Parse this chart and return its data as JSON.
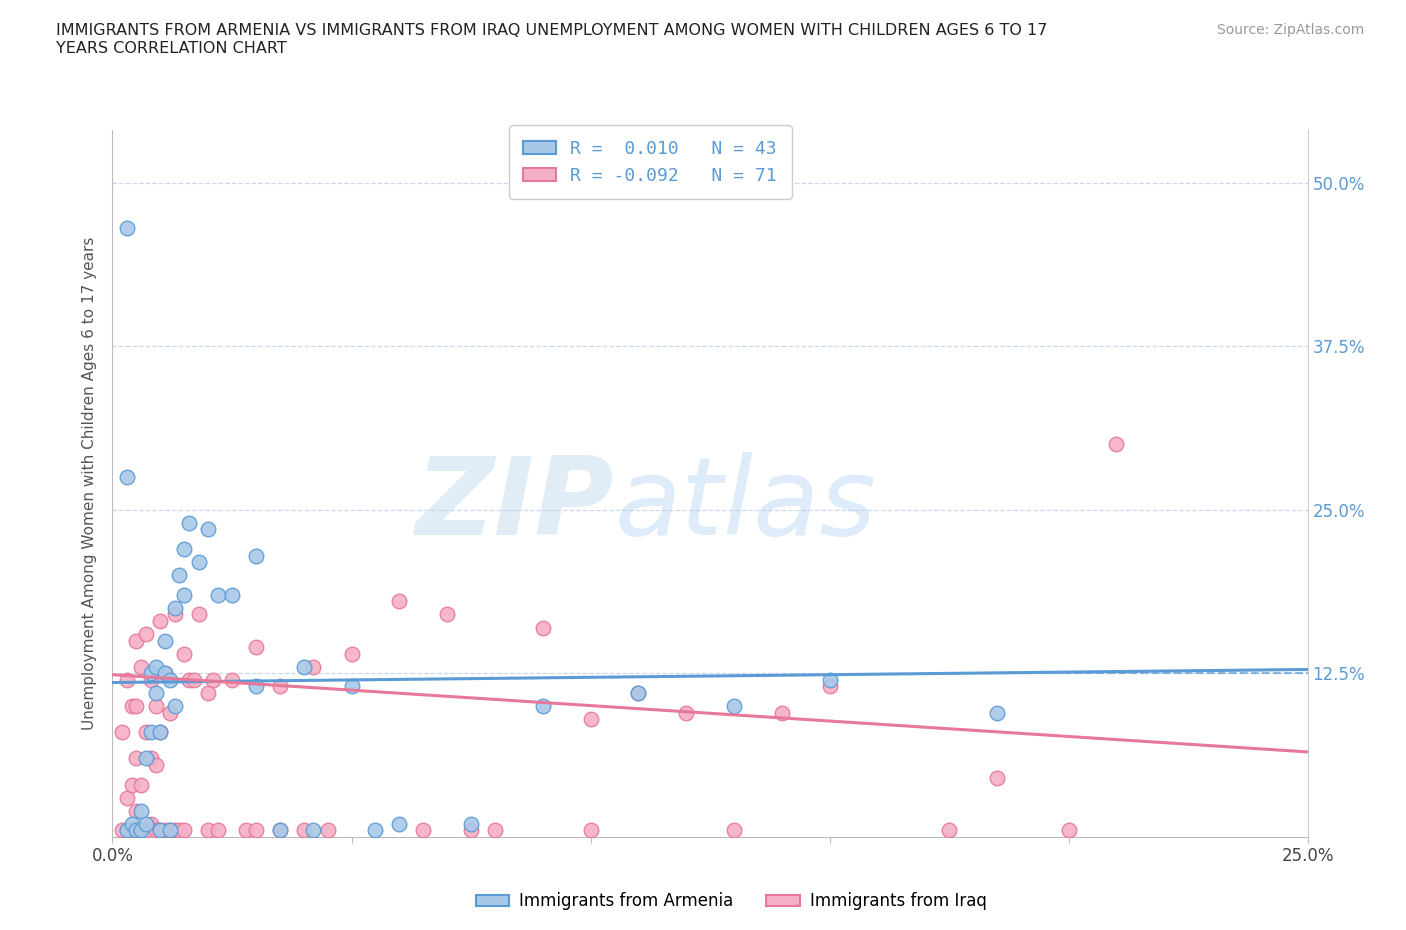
{
  "title": "IMMIGRANTS FROM ARMENIA VS IMMIGRANTS FROM IRAQ UNEMPLOYMENT AMONG WOMEN WITH CHILDREN AGES 6 TO 17\nYEARS CORRELATION CHART",
  "source_text": "Source: ZipAtlas.com",
  "ylabel": "Unemployment Among Women with Children Ages 6 to 17 years",
  "xlim": [
    0.0,
    0.25
  ],
  "ylim": [
    0.0,
    0.54
  ],
  "yticks": [
    0.0,
    0.125,
    0.25,
    0.375,
    0.5
  ],
  "ytick_labels_right": [
    "",
    "12.5%",
    "25.0%",
    "37.5%",
    "50.0%"
  ],
  "xticks": [
    0.0,
    0.05,
    0.1,
    0.15,
    0.2,
    0.25
  ],
  "xtick_labels": [
    "0.0%",
    "",
    "",
    "",
    "",
    "25.0%"
  ],
  "armenia_color": "#a8c8e8",
  "iraq_color": "#f4b0c4",
  "armenia_edge_color": "#5b9bd5",
  "iraq_edge_color": "#e8789a",
  "armenia_line_color": "#5b9bd5",
  "iraq_line_color": "#e8789a",
  "grid_color": "#c8d8ee",
  "legend_r_armenia": "R =  0.010",
  "legend_n_armenia": "N = 43",
  "legend_r_iraq": "R = -0.092",
  "legend_n_iraq": "N = 71",
  "armenia_scatter_x": [
    0.003,
    0.003,
    0.004,
    0.005,
    0.006,
    0.006,
    0.007,
    0.007,
    0.008,
    0.008,
    0.009,
    0.009,
    0.01,
    0.01,
    0.011,
    0.011,
    0.012,
    0.012,
    0.013,
    0.013,
    0.014,
    0.015,
    0.015,
    0.016,
    0.018,
    0.02,
    0.022,
    0.025,
    0.03,
    0.03,
    0.035,
    0.04,
    0.042,
    0.05,
    0.055,
    0.06,
    0.075,
    0.09,
    0.11,
    0.13,
    0.15,
    0.185,
    0.003
  ],
  "armenia_scatter_y": [
    0.465,
    0.005,
    0.01,
    0.005,
    0.005,
    0.02,
    0.01,
    0.06,
    0.08,
    0.125,
    0.11,
    0.13,
    0.005,
    0.08,
    0.125,
    0.15,
    0.005,
    0.12,
    0.1,
    0.175,
    0.2,
    0.185,
    0.22,
    0.24,
    0.21,
    0.235,
    0.185,
    0.185,
    0.115,
    0.215,
    0.005,
    0.13,
    0.005,
    0.115,
    0.005,
    0.01,
    0.01,
    0.1,
    0.11,
    0.1,
    0.12,
    0.095,
    0.275
  ],
  "iraq_scatter_x": [
    0.002,
    0.002,
    0.003,
    0.003,
    0.003,
    0.004,
    0.004,
    0.004,
    0.005,
    0.005,
    0.005,
    0.005,
    0.005,
    0.006,
    0.006,
    0.006,
    0.007,
    0.007,
    0.007,
    0.008,
    0.008,
    0.008,
    0.009,
    0.009,
    0.009,
    0.01,
    0.01,
    0.01,
    0.011,
    0.011,
    0.012,
    0.012,
    0.013,
    0.013,
    0.014,
    0.015,
    0.015,
    0.016,
    0.017,
    0.018,
    0.02,
    0.02,
    0.021,
    0.022,
    0.025,
    0.028,
    0.03,
    0.03,
    0.035,
    0.035,
    0.04,
    0.042,
    0.045,
    0.05,
    0.06,
    0.065,
    0.07,
    0.075,
    0.08,
    0.09,
    0.1,
    0.1,
    0.11,
    0.12,
    0.13,
    0.14,
    0.15,
    0.175,
    0.185,
    0.2,
    0.21
  ],
  "iraq_scatter_y": [
    0.005,
    0.08,
    0.005,
    0.03,
    0.12,
    0.005,
    0.04,
    0.1,
    0.005,
    0.02,
    0.06,
    0.1,
    0.15,
    0.005,
    0.04,
    0.13,
    0.005,
    0.08,
    0.155,
    0.01,
    0.06,
    0.12,
    0.005,
    0.055,
    0.1,
    0.005,
    0.08,
    0.165,
    0.005,
    0.125,
    0.005,
    0.095,
    0.005,
    0.17,
    0.005,
    0.005,
    0.14,
    0.12,
    0.12,
    0.17,
    0.005,
    0.11,
    0.12,
    0.005,
    0.12,
    0.005,
    0.005,
    0.145,
    0.005,
    0.115,
    0.005,
    0.13,
    0.005,
    0.14,
    0.18,
    0.005,
    0.17,
    0.005,
    0.005,
    0.16,
    0.005,
    0.09,
    0.11,
    0.095,
    0.005,
    0.095,
    0.115,
    0.005,
    0.045,
    0.005,
    0.3
  ],
  "armenia_trend_x": [
    0.0,
    0.25
  ],
  "armenia_trend_y": [
    0.118,
    0.128
  ],
  "iraq_trend_x": [
    0.0,
    0.25
  ],
  "iraq_trend_y": [
    0.124,
    0.065
  ],
  "dashed_line_y": 0.125,
  "dashed_line_x_start": 0.185,
  "dashed_line_x_end": 0.25
}
